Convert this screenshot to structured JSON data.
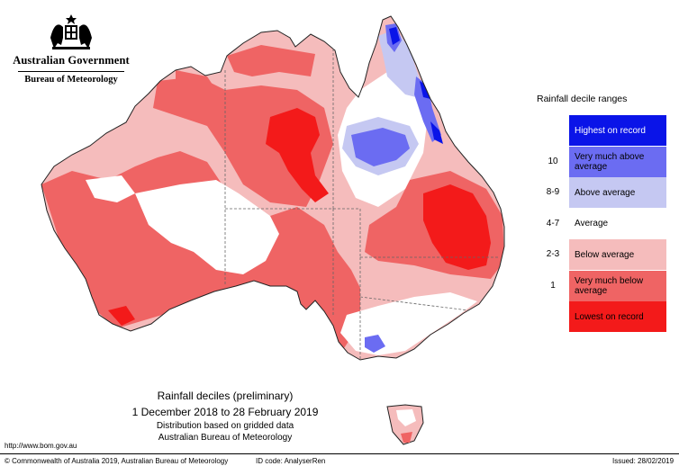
{
  "header": {
    "organisation": "Australian Government",
    "bureau": "Bureau of Meteorology"
  },
  "legend": {
    "title": "Rainfall decile ranges",
    "items": [
      {
        "code": "",
        "label": "Highest on record",
        "color": "#0a14e8",
        "text_color": "#ffffff"
      },
      {
        "code": "10",
        "label": "Very much above average",
        "color": "#6b6cf2",
        "text_color": "#000000"
      },
      {
        "code": "8-9",
        "label": "Above average",
        "color": "#c5c8f2",
        "text_color": "#000000"
      },
      {
        "code": "4-7",
        "label": "Average",
        "color": "#ffffff",
        "text_color": "#000000"
      },
      {
        "code": "2-3",
        "label": "Below average",
        "color": "#f5bcbc",
        "text_color": "#000000"
      },
      {
        "code": "1",
        "label": "Very much below average",
        "color": "#ef6464",
        "text_color": "#000000"
      },
      {
        "code": "",
        "label": "Lowest on record",
        "color": "#f31a1a",
        "text_color": "#000000"
      }
    ]
  },
  "caption": {
    "title": "Rainfall deciles (preliminary)",
    "period": "1 December 2018 to 28 February 2019",
    "note": "Distribution based on gridded data",
    "source": "Australian Bureau of Meteorology"
  },
  "footer": {
    "url": "http://www.bom.gov.au",
    "copyright": "© Commonwealth of Australia 2019, Australian Bureau of Meteorology",
    "id_code": "ID code: AnalyserRen",
    "issued": "Issued: 28/02/2019"
  },
  "map_colors": {
    "border": "#222222",
    "state_border": "#666666"
  }
}
